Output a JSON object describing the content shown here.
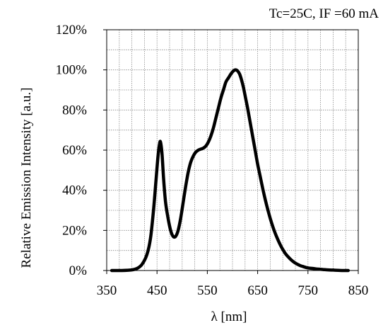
{
  "chart_data": {
    "type": "line",
    "title": "",
    "annotation": "Tc=25C, IF =60 mA",
    "xlabel": "λ [nm]",
    "ylabel": "Relative Emission Intensity [a.u.]",
    "xlim": [
      350,
      850
    ],
    "ylim": [
      0,
      120
    ],
    "x_ticks": [
      350,
      450,
      550,
      650,
      750,
      850
    ],
    "x_tick_labels": [
      "350",
      "450",
      "550",
      "650",
      "750",
      "850"
    ],
    "y_ticks": [
      0,
      20,
      40,
      60,
      80,
      100,
      120
    ],
    "y_tick_labels": [
      "0%",
      "20%",
      "40%",
      "60%",
      "80%",
      "100%",
      "120%"
    ],
    "grid": true,
    "legend": "none",
    "series": [
      {
        "color": "#000000",
        "x": [
          360,
          380,
          400,
          410,
          420,
          430,
          437,
          443,
          448,
          452,
          455,
          457,
          460,
          463,
          467,
          472,
          477,
          482,
          487,
          492,
          497,
          502,
          507,
          512,
          517,
          522,
          527,
          532,
          537,
          542,
          547,
          552,
          557,
          562,
          567,
          572,
          577,
          582,
          587,
          592,
          597,
          602,
          606,
          610,
          614,
          618,
          622,
          626,
          630,
          635,
          640,
          645,
          650,
          655,
          660,
          665,
          670,
          675,
          680,
          685,
          690,
          695,
          700,
          705,
          710,
          715,
          720,
          725,
          730,
          735,
          740,
          745,
          750,
          760,
          770,
          780,
          790,
          800,
          810,
          820,
          830
        ],
        "y": [
          0,
          0,
          0.3,
          1,
          3,
          8,
          16,
          30,
          45,
          57,
          63,
          64,
          58,
          46,
          34,
          26,
          20,
          17,
          17,
          20,
          26,
          34,
          42,
          49,
          54,
          57,
          59,
          60,
          60.5,
          61,
          62,
          64,
          67,
          71,
          76,
          81,
          86,
          90,
          94,
          96,
          98,
          99.5,
          100,
          99.5,
          98,
          95,
          91,
          86,
          81,
          74,
          67,
          60,
          53,
          47,
          41,
          35.5,
          30.5,
          26,
          22,
          18.5,
          15.5,
          12.8,
          10.5,
          8.5,
          7,
          5.7,
          4.6,
          3.7,
          3,
          2.4,
          2,
          1.6,
          1.3,
          1,
          0.7,
          0.5,
          0.3,
          0.2,
          0.1,
          0,
          0
        ]
      }
    ]
  }
}
